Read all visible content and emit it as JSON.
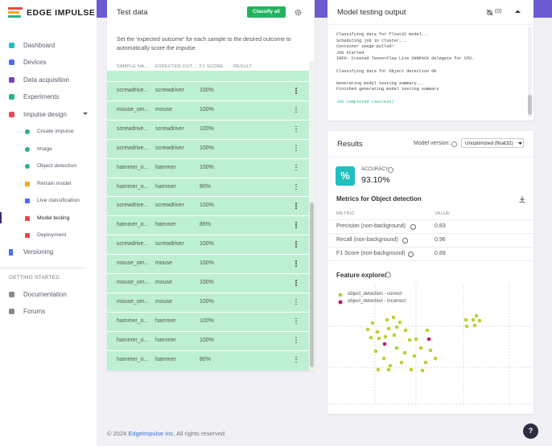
{
  "sidebar": {
    "logo": "EDGE IMPULSE",
    "nav": [
      "Dashboard",
      "Devices",
      "Data acquisition",
      "Experiments",
      "Impulse design"
    ],
    "impulse_steps": [
      "Create impulse",
      "Image",
      "Object detection",
      "Retrain model",
      "Live classification",
      "Model testing",
      "Deployment"
    ],
    "versioning": "Versioning",
    "section": "GETTING STARTED",
    "links": [
      "Documentation",
      "Forums"
    ]
  },
  "test_data": {
    "title": "Test data",
    "button": "Classify all",
    "description": "Set the 'expected outcome' for each sample to the desired outcome to automatically score the impulse.",
    "columns": [
      "SAMPLE NA...",
      "EXPECTED OUT...",
      "F1 SCORE",
      "RESULT"
    ],
    "rows": [
      [
        "screwdrive...",
        "screwdriver",
        "100%"
      ],
      [
        "mouse_om...",
        "mouse",
        "100%"
      ],
      [
        "screwdrive...",
        "screwdriver",
        "100%"
      ],
      [
        "screwdrive...",
        "screwdriver",
        "100%"
      ],
      [
        "hammer_o...",
        "hammer",
        "100%"
      ],
      [
        "hammer_o...",
        "hammer",
        "80%"
      ],
      [
        "screwdrive...",
        "screwdriver",
        "100%"
      ],
      [
        "hammer_o...",
        "hammer",
        "85%"
      ],
      [
        "screwdrive...",
        "screwdriver",
        "100%"
      ],
      [
        "mouse_om...",
        "mouse",
        "100%"
      ],
      [
        "mouse_om...",
        "mouse",
        "100%"
      ],
      [
        "mouse_om...",
        "mouse",
        "100%"
      ],
      [
        "hammer_o...",
        "hammer",
        "100%"
      ],
      [
        "hammer_o...",
        "hammer",
        "100%"
      ],
      [
        "hammer_o...",
        "hammer",
        "80%"
      ]
    ]
  },
  "output": {
    "title": "Model testing output",
    "notifications": "(0)",
    "log": [
      [
        "Classifying data for float32 model...",
        "Scheduling job in cluster...",
        "Container image pulled!",
        "Job started",
        "INFO: Created TensorFlow Lite XNNPACK delegate for CPU."
      ],
      [
        "Classifying data for Object detection OK"
      ],
      [
        "Generating model testing summary...",
        "Finished generating model testing summary"
      ],
      [
        "Job completed (success)"
      ]
    ]
  },
  "results": {
    "title": "Results",
    "model_version_label": "Model version:",
    "model_version": "Unoptimized (float32)",
    "accuracy_icon": "%",
    "accuracy_label": "ACCURACY",
    "accuracy": "93.10%",
    "metrics_title": "Metrics for Object detection",
    "metric_columns": [
      "METRIC",
      "VALUE"
    ],
    "metrics": [
      [
        "Precision (non-background)",
        "0.83"
      ],
      [
        "Recall (non-background)",
        "0.96"
      ],
      [
        "F1 Score (non-background)",
        "0.89"
      ]
    ],
    "feature_explorer": {
      "title": "Feature explorer",
      "legend": [
        "object_detection - correct",
        "object_detection - incorrect"
      ]
    }
  },
  "footer": {
    "copyright": "© 2024",
    "link": "EdgeImpulse Inc.",
    "suffix": "All rights reserved",
    "help": "?"
  }
}
